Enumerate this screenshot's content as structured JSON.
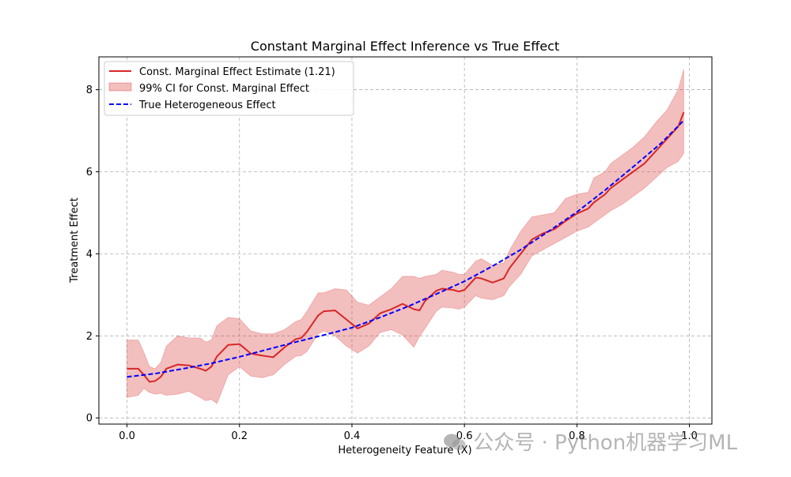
{
  "chart_data": {
    "type": "line",
    "title": "Constant Marginal Effect Inference vs True Effect",
    "xlabel": "Heterogeneity Feature (X)",
    "ylabel": "Treatment Effect",
    "xlim": [
      -0.05,
      1.04
    ],
    "ylim": [
      -0.15,
      8.8
    ],
    "xticks": [
      0.0,
      0.2,
      0.4,
      0.6,
      0.8,
      1.0
    ],
    "xtick_labels": [
      "0.0",
      "0.2",
      "0.4",
      "0.6",
      "0.8",
      "1.0"
    ],
    "yticks": [
      0,
      2,
      4,
      6,
      8
    ],
    "ytick_labels": [
      "0",
      "2",
      "4",
      "6",
      "8"
    ],
    "grid": true,
    "legend_position": "top-left",
    "legend": [
      {
        "label": "Const. Marginal Effect Estimate (1.21)",
        "kind": "line",
        "color": "#d62728",
        "dash": "solid"
      },
      {
        "label": "99% CI for Const. Marginal Effect",
        "kind": "fill",
        "color": "#d62728"
      },
      {
        "label": "True Heterogeneous Effect",
        "kind": "line",
        "color": "#0000ff",
        "dash": "dashed"
      }
    ],
    "series": [
      {
        "name": "Const. Marginal Effect Estimate (1.21)",
        "color": "#d62728",
        "x": [
          0.0,
          0.02,
          0.03,
          0.04,
          0.05,
          0.06,
          0.07,
          0.09,
          0.11,
          0.13,
          0.14,
          0.15,
          0.16,
          0.18,
          0.2,
          0.22,
          0.24,
          0.26,
          0.28,
          0.3,
          0.31,
          0.32,
          0.34,
          0.35,
          0.37,
          0.39,
          0.41,
          0.43,
          0.45,
          0.47,
          0.49,
          0.51,
          0.52,
          0.53,
          0.55,
          0.56,
          0.58,
          0.59,
          0.6,
          0.62,
          0.63,
          0.65,
          0.67,
          0.68,
          0.7,
          0.72,
          0.74,
          0.76,
          0.78,
          0.8,
          0.82,
          0.83,
          0.85,
          0.86,
          0.88,
          0.9,
          0.92,
          0.94,
          0.96,
          0.98,
          0.99
        ],
        "y": [
          1.2,
          1.2,
          1.05,
          0.88,
          0.9,
          1.0,
          1.2,
          1.3,
          1.28,
          1.2,
          1.15,
          1.25,
          1.5,
          1.78,
          1.8,
          1.57,
          1.52,
          1.48,
          1.72,
          1.92,
          1.95,
          2.1,
          2.5,
          2.6,
          2.62,
          2.4,
          2.18,
          2.3,
          2.55,
          2.65,
          2.78,
          2.65,
          2.62,
          2.85,
          3.1,
          3.15,
          3.12,
          3.08,
          3.12,
          3.42,
          3.4,
          3.3,
          3.4,
          3.65,
          4.0,
          4.35,
          4.5,
          4.6,
          4.8,
          4.98,
          5.1,
          5.25,
          5.45,
          5.6,
          5.8,
          6.0,
          6.2,
          6.5,
          6.8,
          7.1,
          7.45
        ]
      },
      {
        "name": "99% CI for Const. Marginal Effect",
        "color": "#d62728",
        "x": [
          0.0,
          0.02,
          0.03,
          0.04,
          0.05,
          0.06,
          0.07,
          0.09,
          0.11,
          0.13,
          0.14,
          0.15,
          0.16,
          0.18,
          0.2,
          0.22,
          0.24,
          0.26,
          0.28,
          0.3,
          0.31,
          0.32,
          0.34,
          0.35,
          0.37,
          0.39,
          0.41,
          0.43,
          0.45,
          0.47,
          0.49,
          0.51,
          0.52,
          0.53,
          0.55,
          0.56,
          0.58,
          0.59,
          0.6,
          0.62,
          0.63,
          0.65,
          0.67,
          0.68,
          0.7,
          0.72,
          0.74,
          0.76,
          0.78,
          0.8,
          0.82,
          0.83,
          0.85,
          0.86,
          0.88,
          0.9,
          0.92,
          0.94,
          0.96,
          0.98,
          0.99
        ],
        "lower": [
          0.5,
          0.55,
          0.72,
          0.62,
          0.58,
          0.6,
          0.55,
          0.58,
          0.65,
          0.5,
          0.42,
          0.45,
          0.35,
          1.05,
          1.25,
          1.02,
          0.98,
          1.05,
          1.3,
          1.5,
          1.52,
          1.62,
          2.05,
          2.12,
          2.0,
          1.75,
          1.58,
          1.75,
          2.08,
          2.15,
          2.02,
          1.72,
          1.98,
          2.18,
          2.6,
          2.7,
          2.68,
          2.65,
          2.7,
          2.98,
          2.92,
          2.88,
          2.98,
          3.2,
          3.5,
          3.95,
          4.1,
          4.25,
          4.4,
          4.55,
          4.65,
          4.75,
          4.95,
          5.05,
          5.2,
          5.4,
          5.6,
          5.85,
          6.1,
          6.25,
          6.45
        ],
        "upper": [
          1.9,
          1.9,
          1.6,
          1.25,
          1.2,
          1.35,
          1.75,
          2.0,
          1.95,
          1.95,
          1.85,
          1.9,
          2.25,
          2.45,
          2.42,
          2.12,
          2.05,
          2.05,
          2.15,
          2.35,
          2.4,
          2.6,
          3.05,
          3.05,
          3.15,
          3.12,
          2.82,
          2.75,
          2.95,
          3.15,
          3.45,
          3.45,
          3.4,
          3.45,
          3.5,
          3.6,
          3.55,
          3.5,
          3.5,
          3.82,
          3.88,
          3.72,
          3.78,
          4.08,
          4.55,
          4.9,
          4.95,
          5.0,
          5.35,
          5.45,
          5.5,
          5.85,
          6.0,
          6.2,
          6.4,
          6.6,
          6.85,
          7.2,
          7.5,
          8.0,
          8.5
        ]
      },
      {
        "name": "True Heterogeneous Effect",
        "color": "#0000ff",
        "x": [
          0.0,
          0.05,
          0.1,
          0.15,
          0.2,
          0.25,
          0.3,
          0.35,
          0.4,
          0.45,
          0.5,
          0.55,
          0.6,
          0.65,
          0.7,
          0.75,
          0.8,
          0.85,
          0.9,
          0.95,
          0.99
        ],
        "y": [
          1.0,
          1.08,
          1.2,
          1.33,
          1.49,
          1.67,
          1.85,
          2.02,
          2.2,
          2.45,
          2.72,
          3.02,
          3.33,
          3.7,
          4.1,
          4.55,
          5.02,
          5.55,
          6.12,
          6.7,
          7.25
        ]
      }
    ]
  },
  "watermark": {
    "text": "公众号 · Python机器学习ML",
    "icon": "wechat-icon"
  }
}
